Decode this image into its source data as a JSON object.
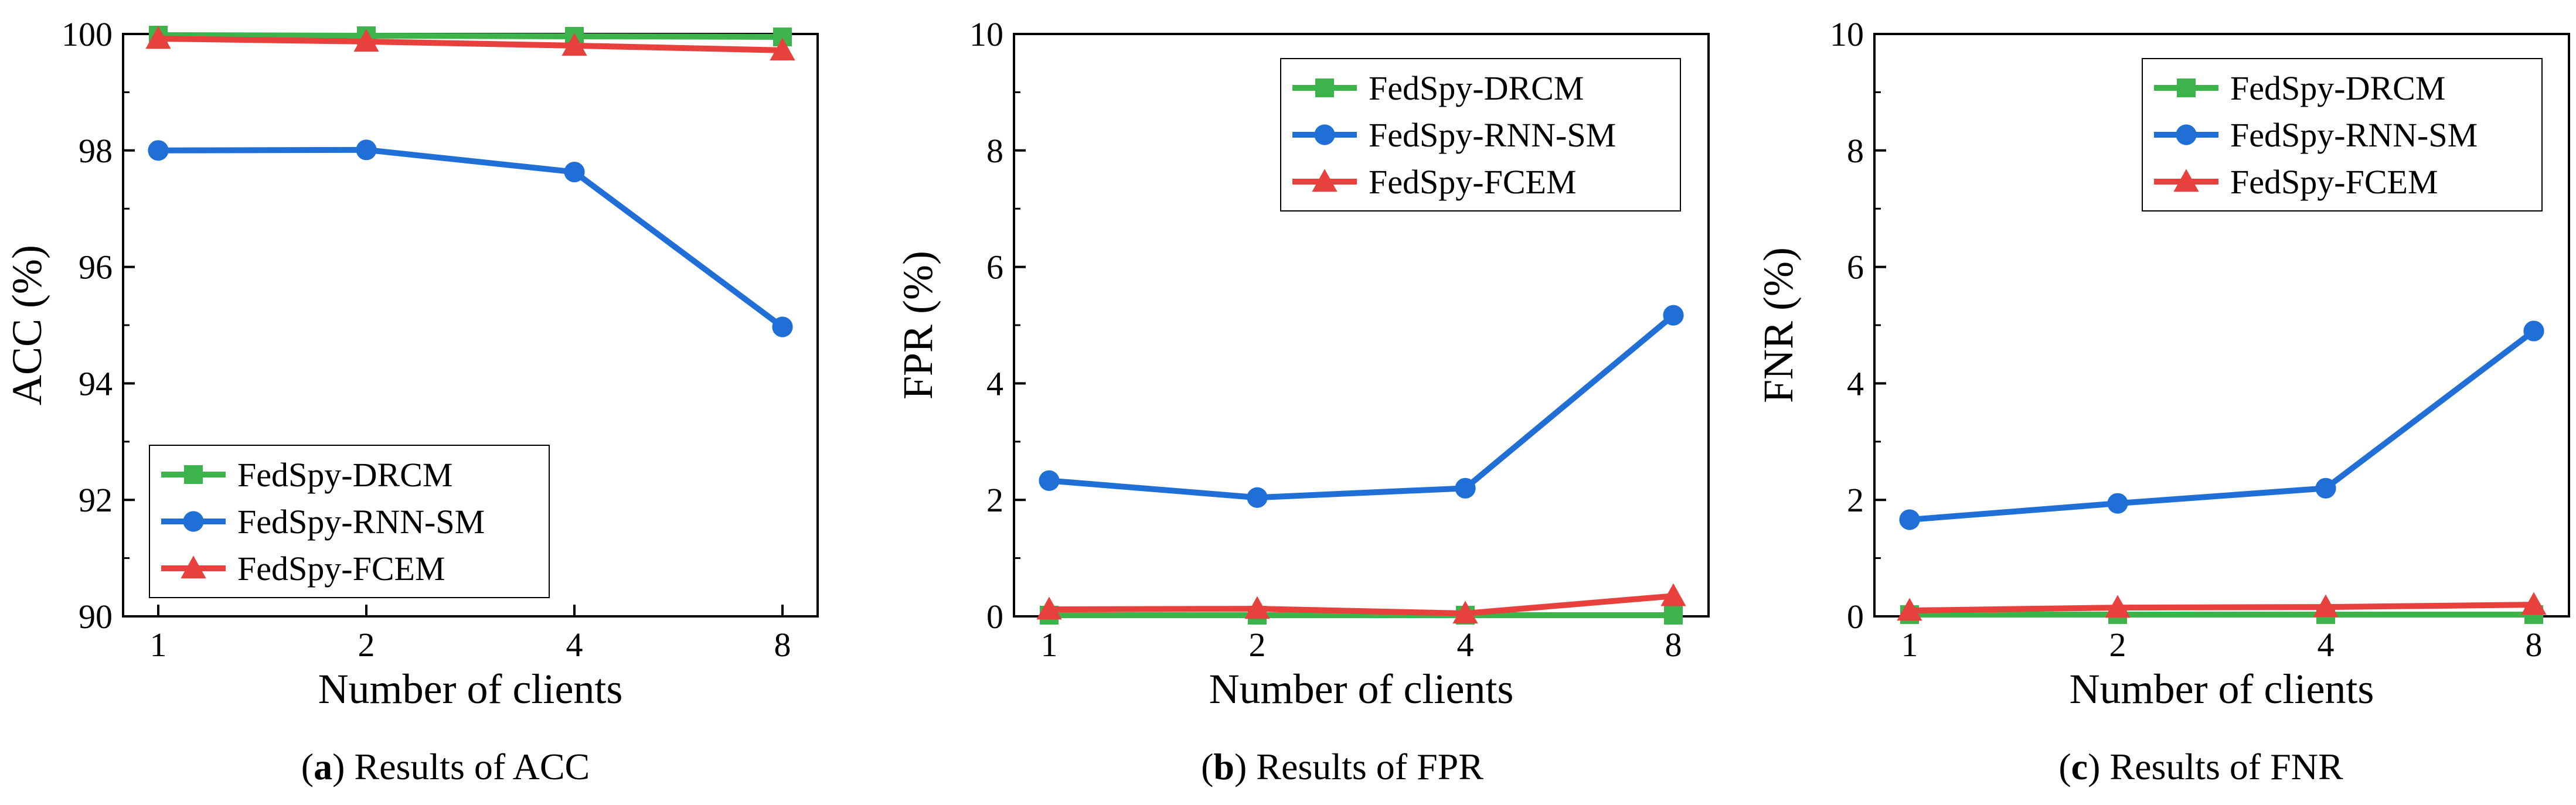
{
  "chart_data": [
    {
      "id": "acc",
      "type": "line",
      "caption_letter": "a",
      "caption_text": ") Results of ACC",
      "caption_open": "(",
      "xlabel": "Number of clients",
      "ylabel": "ACC (%)",
      "categories": [
        "1",
        "2",
        "4",
        "8"
      ],
      "ylim": [
        90,
        100
      ],
      "yticks": [
        "90",
        "92",
        "94",
        "96",
        "98",
        "100"
      ],
      "legend_position": "bottom-left",
      "series": [
        {
          "name": "FedSpy-DRCM",
          "color": "#3cb44b",
          "marker": "square",
          "values": [
            99.98,
            99.97,
            99.96,
            99.95
          ]
        },
        {
          "name": "FedSpy-RNN-SM",
          "color": "#1f6fd6",
          "marker": "circle",
          "values": [
            98.0,
            98.01,
            97.63,
            94.97
          ]
        },
        {
          "name": "FedSpy-FCEM",
          "color": "#e8403c",
          "marker": "triangle",
          "values": [
            99.92,
            99.87,
            99.8,
            99.72
          ]
        }
      ]
    },
    {
      "id": "fpr",
      "type": "line",
      "caption_letter": "b",
      "caption_text": ") Results of FPR",
      "caption_open": "(",
      "xlabel": "Number of clients",
      "ylabel": "FPR (%)",
      "categories": [
        "1",
        "2",
        "4",
        "8"
      ],
      "ylim": [
        0,
        10
      ],
      "yticks": [
        "0",
        "2",
        "4",
        "6",
        "8",
        "10"
      ],
      "legend_position": "top-right",
      "series": [
        {
          "name": "FedSpy-DRCM",
          "color": "#3cb44b",
          "marker": "square",
          "values": [
            0.02,
            0.02,
            0.02,
            0.02
          ]
        },
        {
          "name": "FedSpy-RNN-SM",
          "color": "#1f6fd6",
          "marker": "circle",
          "values": [
            2.33,
            2.04,
            2.2,
            5.17
          ]
        },
        {
          "name": "FedSpy-FCEM",
          "color": "#e8403c",
          "marker": "triangle",
          "values": [
            0.12,
            0.13,
            0.05,
            0.35
          ]
        }
      ]
    },
    {
      "id": "fnr",
      "type": "line",
      "caption_letter": "c",
      "caption_text": ") Results of FNR",
      "caption_open": "(",
      "xlabel": "Number of clients",
      "ylabel": "FNR (%)",
      "categories": [
        "1",
        "2",
        "4",
        "8"
      ],
      "ylim": [
        0,
        10
      ],
      "yticks": [
        "0",
        "2",
        "4",
        "6",
        "8",
        "10"
      ],
      "legend_position": "top-right",
      "series": [
        {
          "name": "FedSpy-DRCM",
          "color": "#3cb44b",
          "marker": "square",
          "values": [
            0.03,
            0.03,
            0.03,
            0.03
          ]
        },
        {
          "name": "FedSpy-RNN-SM",
          "color": "#1f6fd6",
          "marker": "circle",
          "values": [
            1.66,
            1.94,
            2.2,
            4.9
          ]
        },
        {
          "name": "FedSpy-FCEM",
          "color": "#e8403c",
          "marker": "triangle",
          "values": [
            0.1,
            0.15,
            0.16,
            0.2
          ]
        }
      ]
    }
  ]
}
